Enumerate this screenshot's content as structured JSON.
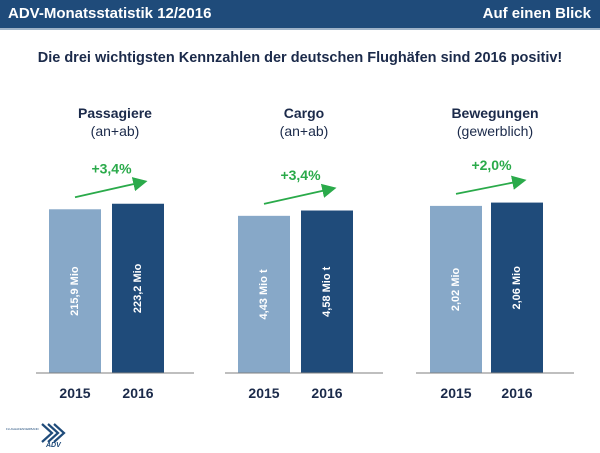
{
  "header": {
    "title": "ADV-Monatsstatistik 12/2016",
    "right_label": "Auf einen Blick"
  },
  "headline": "Die drei wichtigsten Kennzahlen der deutschen Flughäfen sind 2016 positiv!",
  "logo": {
    "icon": "adv-logo-icon",
    "text": "ADV",
    "small_text": "FLUGHAFENVERBAND"
  },
  "colors": {
    "header_bg": "#1f4b7a",
    "bar_2015": "#87a8c8",
    "bar_2016": "#1f4b7a",
    "growth": "#2aaa4a"
  },
  "chart_data": [
    {
      "type": "bar",
      "title": "Passagiere",
      "subtitle": "(an+ab)",
      "categories": [
        "2015",
        "2016"
      ],
      "values": [
        215.9,
        223.2
      ],
      "data_labels": [
        "215,9 Mio",
        "223,2 Mio"
      ],
      "growth_label": "+3,4%",
      "ylim": [
        0,
        240
      ]
    },
    {
      "type": "bar",
      "title": "Cargo",
      "subtitle": "(an+ab)",
      "categories": [
        "2015",
        "2016"
      ],
      "values": [
        4.43,
        4.58
      ],
      "data_labels": [
        "4,43 Mio t",
        "4,58 Mio t"
      ],
      "growth_label": "+3,4%",
      "ylim": [
        0,
        5.13
      ]
    },
    {
      "type": "bar",
      "title": "Bewegungen",
      "subtitle": "(gewerblich)",
      "categories": [
        "2015",
        "2016"
      ],
      "values": [
        2.02,
        2.06
      ],
      "data_labels": [
        "2,02 Mio",
        "2,06 Mio"
      ],
      "growth_label": "+2,0%",
      "ylim": [
        0,
        2.2
      ]
    }
  ]
}
